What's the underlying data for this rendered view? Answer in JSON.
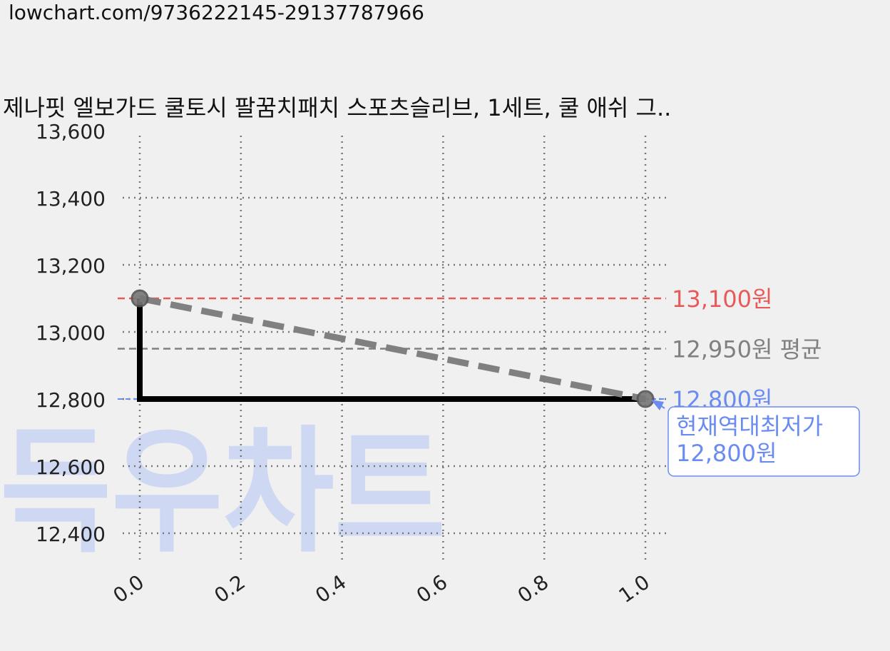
{
  "url": "lowchart.com/9736222145-29137787966",
  "watermark": "득우차트",
  "chart_data": {
    "type": "line",
    "title": "제나핏 엘보가드 쿨토시 팔꿈치패치 스포츠슬리브, 1세트, 쿨 애쉬 그..",
    "xlabel": "",
    "ylabel": "",
    "xlim": [
      0.0,
      1.0
    ],
    "ylim": [
      12300,
      13600
    ],
    "grid": true,
    "x_ticks": [
      {
        "value": 0.0,
        "label": "0.0"
      },
      {
        "value": 0.2,
        "label": "0.2"
      },
      {
        "value": 0.4,
        "label": "0.4"
      },
      {
        "value": 0.6,
        "label": "0.6"
      },
      {
        "value": 0.8,
        "label": "0.8"
      },
      {
        "value": 1.0,
        "label": "1.0"
      }
    ],
    "y_ticks": [
      {
        "value": 12400,
        "label": "12,400"
      },
      {
        "value": 12600,
        "label": "12,600"
      },
      {
        "value": 12800,
        "label": "12,800"
      },
      {
        "value": 13000,
        "label": "13,000"
      },
      {
        "value": 13200,
        "label": "13,200"
      },
      {
        "value": 13400,
        "label": "13,400"
      },
      {
        "value": 13600,
        "label": "13,600"
      }
    ],
    "series": [
      {
        "style": "step",
        "color": "#000000",
        "points": [
          [
            0.0,
            13100
          ],
          [
            0.0,
            12800
          ],
          [
            1.0,
            12800
          ]
        ]
      },
      {
        "style": "trend-dashed",
        "color": "#808080",
        "points": [
          [
            0.0,
            13100
          ],
          [
            1.0,
            12800
          ]
        ]
      }
    ],
    "markers": [
      {
        "x": 0.0,
        "y": 13100
      },
      {
        "x": 1.0,
        "y": 12800
      }
    ],
    "reference_lines": [
      {
        "y": 13100,
        "label": "13,100원",
        "color": "#e85a5a"
      },
      {
        "y": 12950,
        "label": "12,950원 평균",
        "color": "#808080"
      },
      {
        "y": 12800,
        "label": "12,800원",
        "color": "#6a8cf0"
      }
    ],
    "annotation": {
      "x": 1.0,
      "y": 12800,
      "lines": [
        "현재역대최저가",
        "12,800원"
      ],
      "color": "#6a8cf0"
    }
  }
}
